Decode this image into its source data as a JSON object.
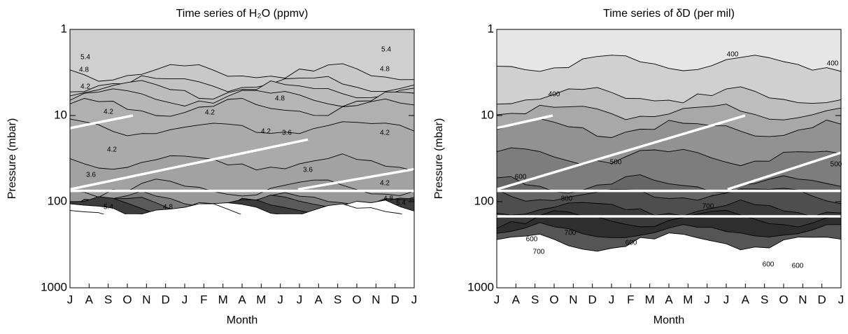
{
  "chart_data": [
    {
      "type": "contour",
      "title": "Time series of H₂O (ppmv)",
      "xlabel": "Month",
      "ylabel": "Pressure (mbar)",
      "categories": [
        "J",
        "A",
        "S",
        "O",
        "N",
        "D",
        "J",
        "F",
        "M",
        "A",
        "M",
        "J",
        "J",
        "A",
        "S",
        "O",
        "N",
        "D",
        "J"
      ],
      "ylim": [
        1000,
        1
      ],
      "yticks": [
        1,
        10,
        100,
        1000
      ],
      "log": true,
      "annotations": [
        "5.4",
        "4.8",
        "4.2",
        "4.2",
        "4.2",
        "3.6",
        "5.4",
        "4.8",
        "4.2",
        "4.8",
        "4.2",
        "3.6",
        "3.6",
        "4.2",
        "5.4",
        "4.8",
        "4.2",
        "4.8",
        "5.4"
      ]
    },
    {
      "type": "contour",
      "title": "Time series of δD (per mil)",
      "xlabel": "Month",
      "ylabel": "Pressure (mbar)",
      "categories": [
        "J",
        "A",
        "S",
        "O",
        "N",
        "D",
        "J",
        "F",
        "M",
        "A",
        "M",
        "J",
        "J",
        "A",
        "S",
        "O",
        "N",
        "D",
        "J"
      ],
      "ylim": [
        1000,
        1
      ],
      "yticks": [
        1,
        10,
        100,
        1000
      ],
      "log": true,
      "annotations": [
        "400",
        "400",
        "400",
        "500",
        "500",
        "600",
        "700",
        "700",
        "600",
        "800",
        "700",
        "600",
        "600",
        "600"
      ]
    }
  ]
}
